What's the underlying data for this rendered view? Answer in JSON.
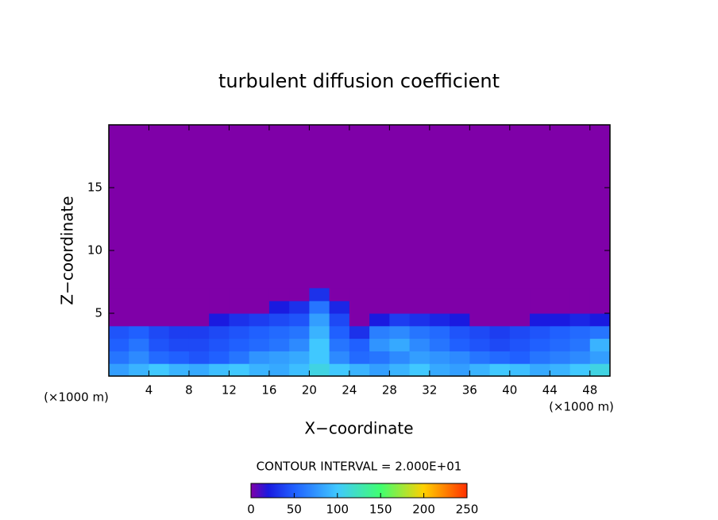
{
  "chart_data": {
    "type": "heatmap",
    "title": "turbulent diffusion coefficient",
    "xlabel": "X−coordinate",
    "ylabel": "Z−coordinate",
    "x_unit": "(×1000 m)",
    "y_unit": "(×1000 m)",
    "annotation": "CONTOUR INTERVAL = 2.000E+01",
    "xlim": [
      0,
      50
    ],
    "ylim": [
      0,
      20
    ],
    "xticks": [
      4,
      8,
      12,
      16,
      20,
      24,
      28,
      32,
      36,
      40,
      44,
      48
    ],
    "yticks": [
      5,
      10,
      15
    ],
    "x": [
      1,
      3,
      5,
      7,
      9,
      11,
      13,
      15,
      17,
      19,
      21,
      23,
      25,
      27,
      29,
      31,
      33,
      35,
      37,
      39,
      41,
      43,
      45,
      47,
      49
    ],
    "y": [
      0.5,
      1.5,
      2.5,
      3.5,
      4.5,
      5.5,
      6.5
    ],
    "values": [
      [
        80,
        90,
        100,
        90,
        85,
        95,
        100,
        90,
        85,
        95,
        110,
        100,
        90,
        80,
        90,
        100,
        85,
        80,
        90,
        100,
        95,
        85,
        90,
        100,
        110
      ],
      [
        60,
        70,
        55,
        50,
        45,
        50,
        60,
        75,
        80,
        85,
        100,
        70,
        55,
        60,
        70,
        80,
        75,
        70,
        60,
        55,
        50,
        60,
        65,
        70,
        80
      ],
      [
        50,
        60,
        45,
        40,
        40,
        45,
        50,
        55,
        60,
        70,
        100,
        60,
        50,
        75,
        85,
        70,
        60,
        50,
        45,
        40,
        45,
        50,
        55,
        60,
        90
      ],
      [
        45,
        50,
        40,
        35,
        35,
        40,
        45,
        50,
        55,
        60,
        90,
        50,
        30,
        65,
        70,
        60,
        55,
        45,
        40,
        35,
        40,
        45,
        50,
        55,
        60
      ],
      [
        0,
        0,
        0,
        0,
        0,
        20,
        30,
        35,
        40,
        45,
        80,
        40,
        0,
        20,
        35,
        30,
        25,
        20,
        0,
        0,
        0,
        20,
        20,
        25,
        20
      ],
      [
        0,
        0,
        0,
        0,
        0,
        0,
        0,
        0,
        20,
        30,
        60,
        25,
        0,
        0,
        0,
        0,
        0,
        0,
        0,
        0,
        0,
        0,
        0,
        0,
        0
      ],
      [
        0,
        0,
        0,
        0,
        0,
        0,
        0,
        0,
        0,
        0,
        30,
        0,
        0,
        0,
        0,
        0,
        0,
        0,
        0,
        0,
        0,
        0,
        0,
        0,
        0
      ]
    ],
    "colorscale": [
      [
        0,
        "#7f00a8"
      ],
      [
        20,
        "#1a1ae0"
      ],
      [
        50,
        "#2060ff"
      ],
      [
        100,
        "#40c8ff"
      ],
      [
        150,
        "#40ff70"
      ],
      [
        200,
        "#ffd000"
      ],
      [
        250,
        "#ff3000"
      ]
    ],
    "colorbar": {
      "lim": [
        0,
        250
      ],
      "ticks": [
        0,
        50,
        100,
        150,
        200,
        250
      ]
    }
  }
}
